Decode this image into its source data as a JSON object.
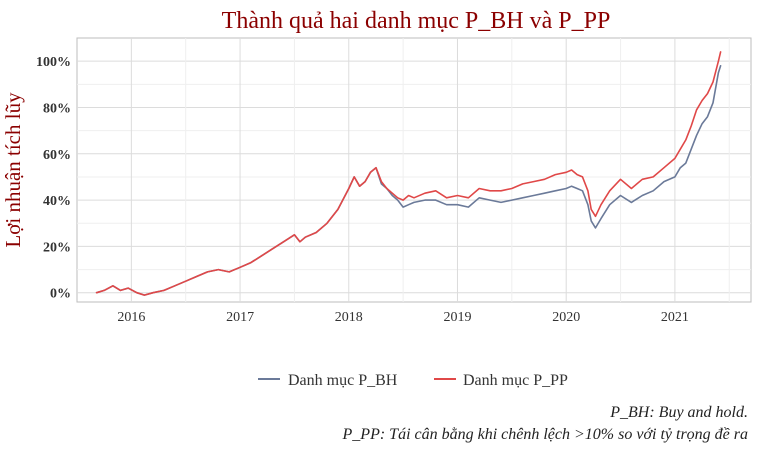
{
  "chart_data": {
    "type": "line",
    "title": "Thành quả hai danh mục P_BH và P_PP",
    "xlabel": "",
    "ylabel": "Lợi nhuận tích lũy",
    "x_ticks": [
      "2016",
      "2017",
      "2018",
      "2019",
      "2020",
      "2021"
    ],
    "y_ticks": [
      "0%",
      "20%",
      "40%",
      "60%",
      "80%",
      "100%"
    ],
    "xlim": [
      2015.5,
      2021.7
    ],
    "ylim": [
      -4,
      110
    ],
    "grid": true,
    "legend_position": "bottom",
    "x": [
      2015.68,
      2015.75,
      2015.83,
      2015.9,
      2015.97,
      2016.05,
      2016.12,
      2016.2,
      2016.3,
      2016.4,
      2016.5,
      2016.6,
      2016.7,
      2016.8,
      2016.9,
      2017.0,
      2017.1,
      2017.2,
      2017.3,
      2017.4,
      2017.5,
      2017.55,
      2017.6,
      2017.7,
      2017.8,
      2017.9,
      2018.0,
      2018.05,
      2018.1,
      2018.15,
      2018.2,
      2018.25,
      2018.3,
      2018.35,
      2018.4,
      2018.45,
      2018.5,
      2018.55,
      2018.6,
      2018.7,
      2018.8,
      2018.9,
      2019.0,
      2019.1,
      2019.2,
      2019.3,
      2019.4,
      2019.5,
      2019.6,
      2019.7,
      2019.8,
      2019.9,
      2020.0,
      2020.05,
      2020.1,
      2020.15,
      2020.2,
      2020.23,
      2020.27,
      2020.32,
      2020.4,
      2020.5,
      2020.6,
      2020.7,
      2020.8,
      2020.9,
      2021.0,
      2021.05,
      2021.1,
      2021.15,
      2021.2,
      2021.25,
      2021.3,
      2021.35,
      2021.4,
      2021.42
    ],
    "series": [
      {
        "name": "Danh mục P_BH",
        "color": "#6b7a99",
        "values": [
          0,
          1,
          3,
          1,
          2,
          0,
          -1,
          0,
          1,
          3,
          5,
          7,
          9,
          10,
          9,
          11,
          13,
          16,
          19,
          22,
          25,
          22,
          24,
          26,
          30,
          36,
          45,
          50,
          46,
          48,
          52,
          54,
          47,
          45,
          42,
          40,
          37,
          38,
          39,
          40,
          40,
          38,
          38,
          37,
          41,
          40,
          39,
          40,
          41,
          42,
          43,
          44,
          45,
          46,
          45,
          44,
          38,
          31,
          28,
          32,
          38,
          42,
          39,
          42,
          44,
          48,
          50,
          54,
          56,
          62,
          68,
          73,
          76,
          82,
          95,
          98
        ]
      },
      {
        "name": "Danh mục P_PP",
        "color": "#e04848",
        "values": [
          0,
          1,
          3,
          1,
          2,
          0,
          -1,
          0,
          1,
          3,
          5,
          7,
          9,
          10,
          9,
          11,
          13,
          16,
          19,
          22,
          25,
          22,
          24,
          26,
          30,
          36,
          45,
          50,
          46,
          48,
          52,
          54,
          48,
          45,
          43,
          41,
          40,
          42,
          41,
          43,
          44,
          41,
          42,
          41,
          45,
          44,
          44,
          45,
          47,
          48,
          49,
          51,
          52,
          53,
          51,
          50,
          44,
          36,
          33,
          38,
          44,
          49,
          45,
          49,
          50,
          54,
          58,
          62,
          66,
          72,
          79,
          83,
          86,
          91,
          100,
          104
        ]
      }
    ]
  },
  "notes": [
    "P_BH: Buy and hold.",
    "P_PP: Tái cân bằng khi chênh lệch >10% so với tỷ trọng đề ra"
  ]
}
